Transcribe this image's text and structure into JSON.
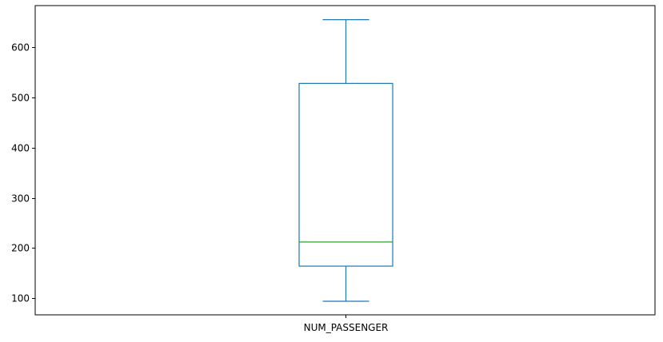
{
  "chart_data": {
    "type": "box",
    "categories": [
      "NUM_PASSENGER"
    ],
    "boxes": [
      {
        "label": "NUM_PASSENGER",
        "whisker_low": 94,
        "q1": 164,
        "median": 212,
        "q3": 528,
        "whisker_high": 655
      }
    ],
    "yticks": [
      100,
      200,
      300,
      400,
      500,
      600
    ],
    "ytick_labels": [
      "100",
      "200",
      "300",
      "400",
      "500",
      "600"
    ],
    "ylim": [
      67,
      683
    ],
    "title": "",
    "xlabel": "",
    "ylabel": "",
    "grid": false,
    "colors": {
      "box": "#1f77b4",
      "median": "#2ca02c",
      "axes": "#000000"
    }
  }
}
